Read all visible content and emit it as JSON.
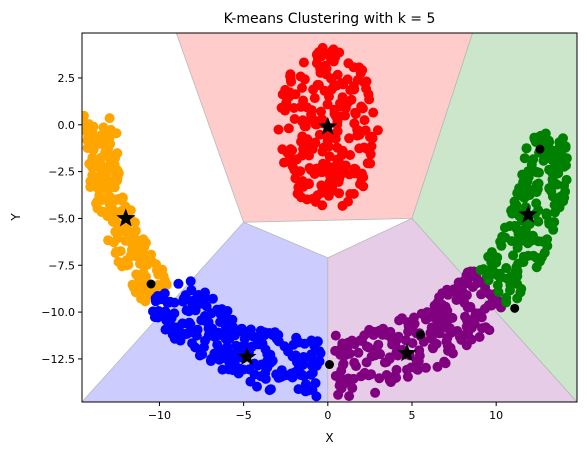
{
  "chart_data": {
    "type": "scatter",
    "title": "K-means Clustering with k = 5",
    "xlabel": "X",
    "ylabel": "Y",
    "xlim": [
      -14.6,
      14.8
    ],
    "ylim": [
      -14.8,
      4.9
    ],
    "xticks": [
      -10,
      -5,
      0,
      5,
      10
    ],
    "yticks": [
      2.5,
      0.0,
      -2.5,
      -5.0,
      -7.5,
      -10.0,
      -12.5
    ],
    "xtick_labels": [
      "−10",
      "−5",
      "0",
      "5",
      "10"
    ],
    "ytick_labels": [
      "2.5",
      "0.0",
      "−2.5",
      "−5.0",
      "−7.5",
      "−10.0",
      "−12.5"
    ],
    "grid": false,
    "legend": "none",
    "clusters": [
      {
        "color": "#ff0000",
        "region_color": "#ffcccc",
        "centroid": [
          0.0,
          -0.1
        ],
        "center": [
          0.0,
          -0.2
        ],
        "spread": [
          3.0,
          2.8
        ],
        "count": 230,
        "shape": "disc"
      },
      {
        "color": "#ffa500",
        "region_color": "#ffffff",
        "centroid": [
          -12.0,
          -5.0
        ],
        "arc": {
          "cx": 0,
          "cy": 0,
          "r0": 12.5,
          "r1": 14.5,
          "a0": 178,
          "a1": 222
        },
        "count": 200,
        "shape": "arc"
      },
      {
        "color": "#0000ff",
        "region_color": "#ccccff",
        "centroid": [
          -4.8,
          -12.4
        ],
        "arc": {
          "cx": 0,
          "cy": 0,
          "r0": 11.5,
          "r1": 14.6,
          "a0": 222,
          "a1": 268
        },
        "count": 230,
        "shape": "arc"
      },
      {
        "color": "#800080",
        "region_color": "#e6cce6",
        "centroid": [
          4.7,
          -12.2
        ],
        "arc": {
          "cx": 0,
          "cy": 0,
          "r0": 11.2,
          "r1": 14.6,
          "a0": 272,
          "a1": 318
        },
        "count": 230,
        "shape": "arc"
      },
      {
        "color": "#008000",
        "region_color": "#cce6cc",
        "centroid": [
          11.9,
          -4.8
        ],
        "arc": {
          "cx": 0,
          "cy": 0,
          "r0": 11.8,
          "r1": 14.6,
          "a0": 318,
          "a1": 358
        },
        "count": 200,
        "shape": "arc"
      }
    ],
    "regions": [
      {
        "color": "#ffcccc",
        "polygon": [
          [
            -9.0,
            4.9
          ],
          [
            8.6,
            4.9
          ],
          [
            5.0,
            -5.0
          ],
          [
            -5.0,
            -5.2
          ]
        ]
      },
      {
        "color": "#ccccff",
        "polygon": [
          [
            -14.6,
            -14.8
          ],
          [
            0.0,
            -14.8
          ],
          [
            0.0,
            -7.1
          ],
          [
            -5.0,
            -5.2
          ]
        ]
      },
      {
        "color": "#e6cce6",
        "polygon": [
          [
            0.0,
            -14.8
          ],
          [
            14.8,
            -14.8
          ],
          [
            5.0,
            -5.0
          ],
          [
            0.0,
            -7.1
          ]
        ]
      },
      {
        "color": "#cce6cc",
        "polygon": [
          [
            8.6,
            4.9
          ],
          [
            14.8,
            4.9
          ],
          [
            14.8,
            -14.8
          ],
          [
            5.0,
            -5.0
          ]
        ]
      }
    ],
    "initial_points": [
      {
        "x": 12.6,
        "y": -1.3
      },
      {
        "x": -10.5,
        "y": -8.5
      },
      {
        "x": 0.1,
        "y": -12.8
      },
      {
        "x": 5.5,
        "y": -11.2
      },
      {
        "x": 11.1,
        "y": -9.8
      }
    ]
  }
}
